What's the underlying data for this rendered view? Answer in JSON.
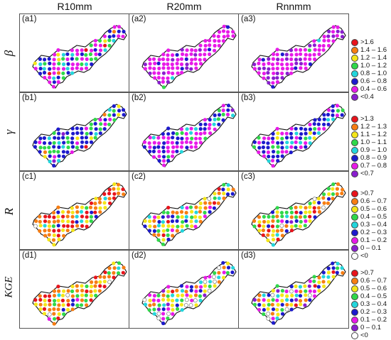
{
  "column_titles": [
    "R10mm",
    "R20mm",
    "Rnnmm"
  ],
  "rows": [
    {
      "metric": "β",
      "panels": [
        {
          "label": "(a1)",
          "class_weights": [
            0.03,
            0.03,
            0.04,
            0.1,
            0.12,
            0.3,
            0.38,
            0.0
          ]
        },
        {
          "label": "(a2)",
          "class_weights": [
            0.0,
            0.0,
            0.0,
            0.02,
            0.02,
            0.06,
            0.78,
            0.12
          ]
        },
        {
          "label": "(a3)",
          "class_weights": [
            0.0,
            0.0,
            0.0,
            0.02,
            0.02,
            0.04,
            0.62,
            0.3
          ]
        }
      ],
      "legend": [
        {
          "label": ">1.6",
          "color": "#e8141c"
        },
        {
          "label": "1.4 – 1.6",
          "color": "#f77e13"
        },
        {
          "label": "1.2 – 1.4",
          "color": "#f4e619"
        },
        {
          "label": "1.0 – 1.2",
          "color": "#2fd84a"
        },
        {
          "label": "0.8 – 1.0",
          "color": "#23d6dc"
        },
        {
          "label": "0.6 – 0.8",
          "color": "#1d1acc"
        },
        {
          "label": "0.4 – 0.6",
          "color": "#e81ae8"
        },
        {
          "label": "<0.4",
          "color": "#8a1ecf"
        }
      ]
    },
    {
      "metric": "γ",
      "panels": [
        {
          "label": "(b1)",
          "class_weights": [
            0.01,
            0.02,
            0.04,
            0.18,
            0.12,
            0.5,
            0.1,
            0.03
          ]
        },
        {
          "label": "(b2)",
          "class_weights": [
            0.0,
            0.0,
            0.02,
            0.08,
            0.08,
            0.32,
            0.48,
            0.02
          ]
        },
        {
          "label": "(b3)",
          "class_weights": [
            0.0,
            0.01,
            0.03,
            0.14,
            0.1,
            0.45,
            0.25,
            0.02
          ]
        }
      ],
      "legend": [
        {
          "label": ">1.3",
          "color": "#e8141c"
        },
        {
          "label": "1.2 – 1.3",
          "color": "#f77e13"
        },
        {
          "label": "1.1 – 1.2",
          "color": "#f4e619"
        },
        {
          "label": "1.0 – 1.1",
          "color": "#2fd84a"
        },
        {
          "label": "0.9 – 1.0",
          "color": "#23d6dc"
        },
        {
          "label": "0.8 – 0.9",
          "color": "#1d1acc"
        },
        {
          "label": "0.7 – 0.8",
          "color": "#e81ae8"
        },
        {
          "label": "<0.7",
          "color": "#8a1ecf"
        }
      ]
    },
    {
      "metric": "R",
      "panels": [
        {
          "label": "(c1)",
          "class_weights": [
            0.28,
            0.35,
            0.18,
            0.1,
            0.04,
            0.03,
            0.01,
            0.0,
            0.01
          ]
        },
        {
          "label": "(c2)",
          "class_weights": [
            0.06,
            0.22,
            0.24,
            0.22,
            0.1,
            0.08,
            0.04,
            0.01,
            0.03
          ]
        },
        {
          "label": "(c3)",
          "class_weights": [
            0.1,
            0.26,
            0.24,
            0.18,
            0.08,
            0.08,
            0.03,
            0.01,
            0.02
          ]
        }
      ],
      "legend": [
        {
          "label": ">0.7",
          "color": "#e8141c"
        },
        {
          "label": "0.6 – 0.7",
          "color": "#f77e13"
        },
        {
          "label": "0.5 – 0.6",
          "color": "#f4e619"
        },
        {
          "label": "0.4 – 0.5",
          "color": "#2fd84a"
        },
        {
          "label": "0.3 – 0.4",
          "color": "#23d6dc"
        },
        {
          "label": "0.2 – 0.3",
          "color": "#1d1acc"
        },
        {
          "label": "0.1 – 0.2",
          "color": "#e81ae8"
        },
        {
          "label": "0 – 0.1",
          "color": "#8a1ecf"
        },
        {
          "label": "<0",
          "color": "#ffffff"
        }
      ]
    },
    {
      "metric": "KGE",
      "panels": [
        {
          "label": "(d1)",
          "class_weights": [
            0.2,
            0.36,
            0.22,
            0.12,
            0.04,
            0.03,
            0.01,
            0.0,
            0.02
          ]
        },
        {
          "label": "(d2)",
          "class_weights": [
            0.02,
            0.08,
            0.14,
            0.16,
            0.14,
            0.14,
            0.14,
            0.06,
            0.12
          ]
        },
        {
          "label": "(d3)",
          "class_weights": [
            0.03,
            0.12,
            0.18,
            0.16,
            0.12,
            0.12,
            0.12,
            0.05,
            0.1
          ]
        }
      ],
      "legend": [
        {
          "label": ">0.7",
          "color": "#e8141c"
        },
        {
          "label": "0.6 – 0.7",
          "color": "#f77e13"
        },
        {
          "label": "0.5 – 0.6",
          "color": "#f4e619"
        },
        {
          "label": "0.4 – 0.5",
          "color": "#2fd84a"
        },
        {
          "label": "0.3 – 0.4",
          "color": "#23d6dc"
        },
        {
          "label": "0.2 – 0.3",
          "color": "#1d1acc"
        },
        {
          "label": "0.1 – 0.2",
          "color": "#e81ae8"
        },
        {
          "label": "0 – 0.1",
          "color": "#8a1ecf"
        },
        {
          "label": "<0",
          "color": "#ffffff"
        }
      ]
    }
  ]
}
